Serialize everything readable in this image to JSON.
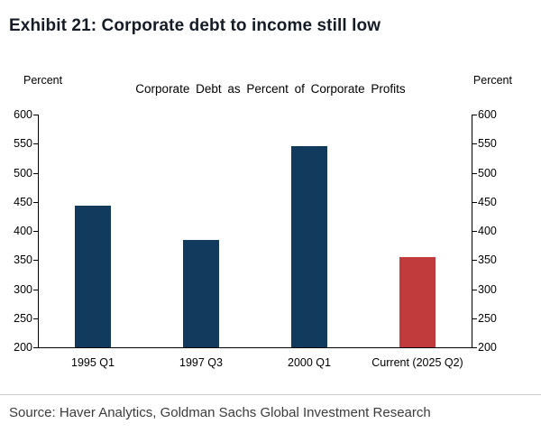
{
  "header": {
    "title": "Exhibit 21: Corporate debt to income still low"
  },
  "chart_data": {
    "type": "bar",
    "title": "Corporate Debt as Percent of Corporate Profits",
    "left_axis_label": "Percent",
    "right_axis_label": "Percent",
    "categories": [
      "1995 Q1",
      "1997 Q3",
      "2000 Q1",
      "Current (2025 Q2)"
    ],
    "values": [
      443,
      385,
      545,
      355
    ],
    "bar_colors": [
      "#123a5c",
      "#123a5c",
      "#123a5c",
      "#c23b3c"
    ],
    "ylim": [
      200,
      600
    ],
    "yticks": [
      200,
      250,
      300,
      350,
      400,
      450,
      500,
      550,
      600
    ],
    "grid": false,
    "legend": false,
    "dual_axis": true
  },
  "footer": {
    "source": "Source: Haver Analytics, Goldman Sachs Global Investment Research"
  }
}
